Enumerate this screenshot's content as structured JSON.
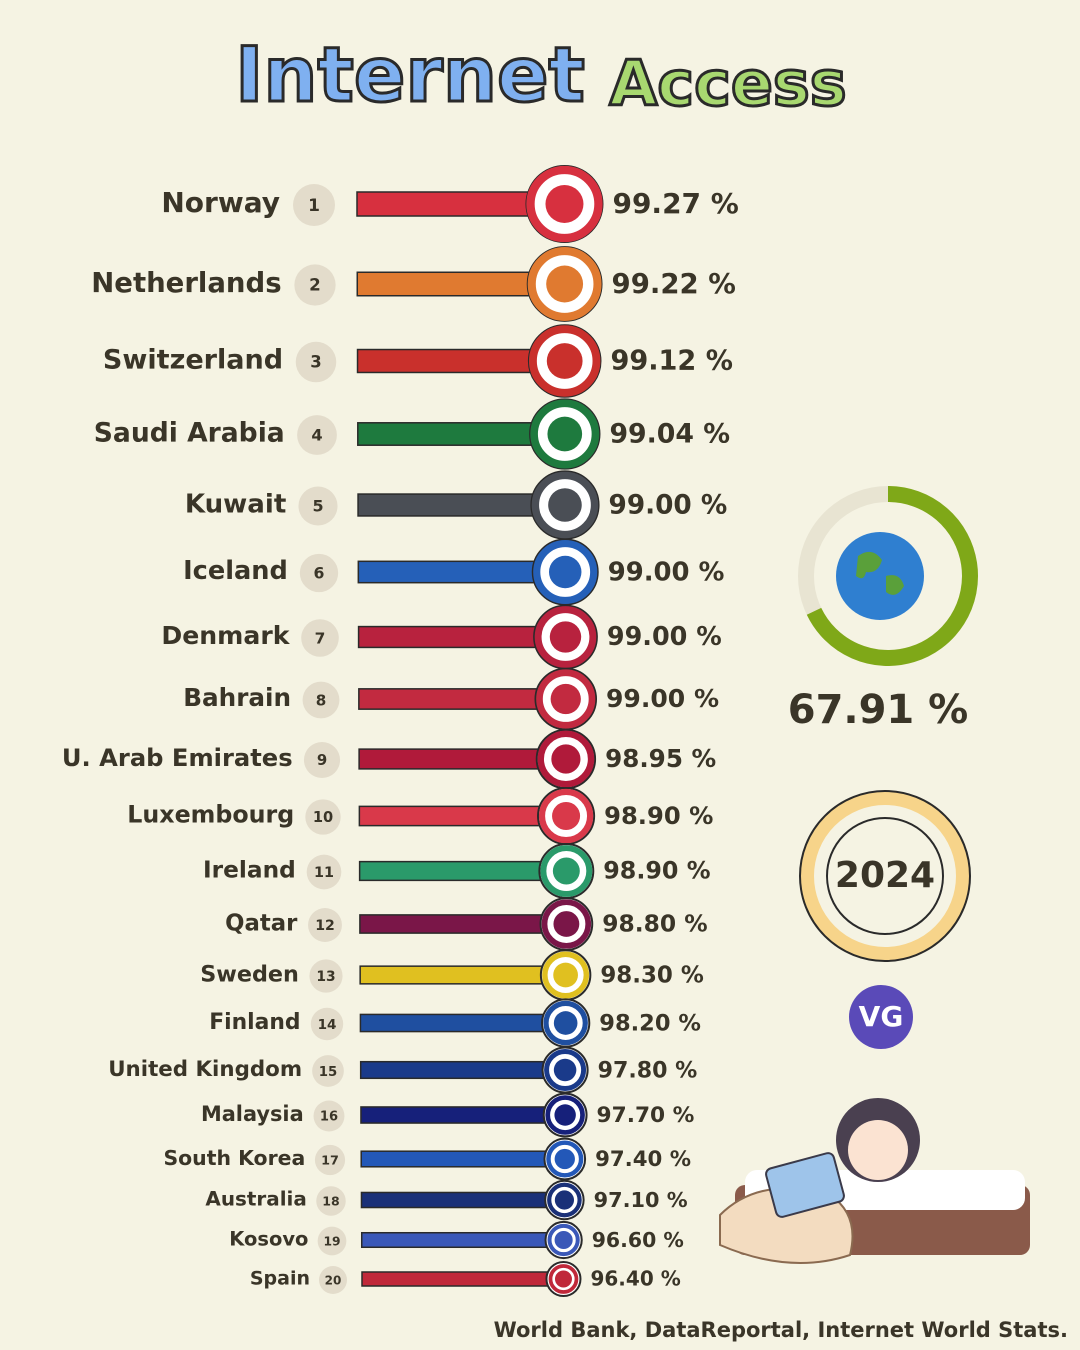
{
  "chart_data": {
    "type": "bar",
    "title_words": [
      "Internet",
      "Access"
    ],
    "categories": [
      "Norway",
      "Netherlands",
      "Switzerland",
      "Saudi Arabia",
      "Kuwait",
      "Iceland",
      "Denmark",
      "Bahrain",
      "U. Arab Emirates",
      "Luxembourg",
      "Ireland",
      "Qatar",
      "Sweden",
      "Finland",
      "United Kingdom",
      "Malaysia",
      "South Korea",
      "Australia",
      "Kosovo",
      "Spain"
    ],
    "ranks": [
      1,
      2,
      3,
      4,
      5,
      6,
      7,
      8,
      9,
      10,
      11,
      12,
      13,
      14,
      15,
      16,
      17,
      18,
      19,
      20
    ],
    "values": [
      99.27,
      99.22,
      99.12,
      99.04,
      99.0,
      99.0,
      99.0,
      99.0,
      98.95,
      98.9,
      98.9,
      98.8,
      98.3,
      98.2,
      97.8,
      97.7,
      97.4,
      97.1,
      96.6,
      96.4
    ],
    "value_labels": [
      "99.27 %",
      "99.22 %",
      "99.12 %",
      "99.04 %",
      "99.00 %",
      "99.00 %",
      "99.00 %",
      "99.00 %",
      "98.95 %",
      "98.90 %",
      "98.90 %",
      "98.80 %",
      "98.30 %",
      "98.20 %",
      "97.80 %",
      "97.70 %",
      "97.40 %",
      "97.10 %",
      "96.60 %",
      "96.40 %"
    ],
    "colors": [
      "#d7303f",
      "#e07a30",
      "#c9302c",
      "#1e7a3e",
      "#4a4e55",
      "#2560b8",
      "#b8223e",
      "#c22a40",
      "#b01a3a",
      "#d9394a",
      "#2a9a6a",
      "#7a1648",
      "#e0c020",
      "#1f4fa0",
      "#1a3a8a",
      "#16207a",
      "#2358b8",
      "#1a3078",
      "#3a58b8",
      "#c0283a"
    ],
    "world_value": 67.91,
    "world_value_label": "67.91 %",
    "world_color": "#7fa818",
    "year": "2024",
    "logo": "VG",
    "source": "World Bank, DataReportal, Internet World Stats."
  }
}
